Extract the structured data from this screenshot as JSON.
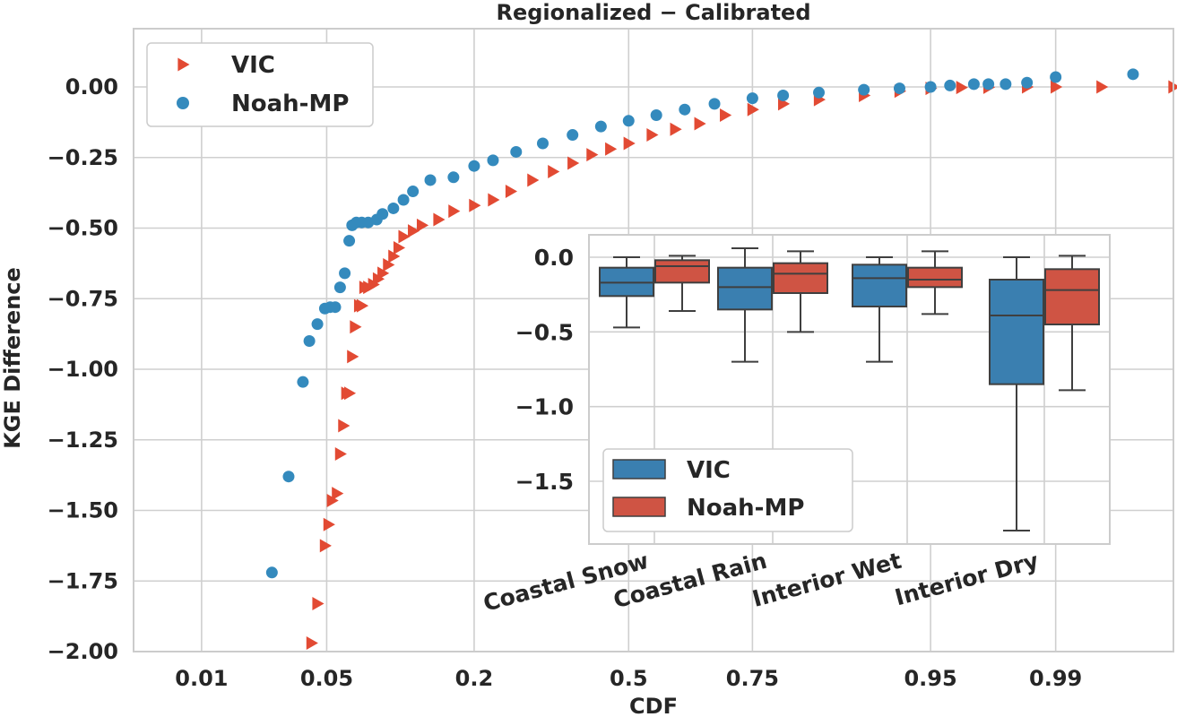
{
  "chart_data": [
    {
      "type": "scatter",
      "title": "Regionalized − Calibrated",
      "xlabel": "CDF",
      "ylabel": "KGE Difference",
      "x_scale": "normal-probability",
      "x_ticks": [
        0.01,
        0.05,
        0.2,
        0.5,
        0.75,
        0.95,
        0.99
      ],
      "x_tick_labels": [
        "0.01",
        "0.05",
        "0.2",
        "0.5",
        "0.75",
        "0.95",
        "0.99"
      ],
      "y_ticks": [
        0.0,
        -0.25,
        -0.5,
        -0.75,
        -1.0,
        -1.25,
        -1.5,
        -1.75,
        -2.0
      ],
      "y_tick_labels": [
        "0.00",
        "−0.25",
        "−0.50",
        "−0.75",
        "−1.00",
        "−1.25",
        "−1.50",
        "−1.75",
        "−2.00"
      ],
      "ylim": [
        -2.0,
        0.2
      ],
      "grid": true,
      "legend_position": "top-left",
      "colors": {
        "VIC": "#e24a33",
        "Noah-MP": "#348abd"
      },
      "series": [
        {
          "name": "VIC",
          "marker": "triangle-right",
          "points": [
            [
              0.042,
              -1.97
            ],
            [
              0.045,
              -1.83
            ],
            [
              0.049,
              -1.625
            ],
            [
              0.051,
              -1.55
            ],
            [
              0.053,
              -1.465
            ],
            [
              0.056,
              -1.44
            ],
            [
              0.058,
              -1.3
            ],
            [
              0.06,
              -1.2
            ],
            [
              0.062,
              -1.085
            ],
            [
              0.064,
              -1.085
            ],
            [
              0.066,
              -0.955
            ],
            [
              0.068,
              -0.85
            ],
            [
              0.071,
              -0.775
            ],
            [
              0.073,
              -0.775
            ],
            [
              0.075,
              -0.71
            ],
            [
              0.078,
              -0.71
            ],
            [
              0.082,
              -0.7
            ],
            [
              0.086,
              -0.68
            ],
            [
              0.09,
              -0.66
            ],
            [
              0.095,
              -0.63
            ],
            [
              0.1,
              -0.6
            ],
            [
              0.105,
              -0.57
            ],
            [
              0.11,
              -0.53
            ],
            [
              0.12,
              -0.51
            ],
            [
              0.13,
              -0.49
            ],
            [
              0.15,
              -0.47
            ],
            [
              0.17,
              -0.44
            ],
            [
              0.2,
              -0.42
            ],
            [
              0.23,
              -0.4
            ],
            [
              0.26,
              -0.37
            ],
            [
              0.3,
              -0.33
            ],
            [
              0.34,
              -0.3
            ],
            [
              0.38,
              -0.27
            ],
            [
              0.42,
              -0.24
            ],
            [
              0.46,
              -0.22
            ],
            [
              0.5,
              -0.2
            ],
            [
              0.55,
              -0.17
            ],
            [
              0.6,
              -0.15
            ],
            [
              0.65,
              -0.13
            ],
            [
              0.7,
              -0.1
            ],
            [
              0.75,
              -0.08
            ],
            [
              0.8,
              -0.06
            ],
            [
              0.85,
              -0.045
            ],
            [
              0.9,
              -0.03
            ],
            [
              0.93,
              -0.015
            ],
            [
              0.95,
              -0.005
            ],
            [
              0.965,
              -0.002
            ],
            [
              0.975,
              -0.001
            ],
            [
              0.985,
              0.0
            ],
            [
              0.99,
              0.0
            ],
            [
              0.995,
              0.0
            ],
            [
              0.9985,
              0.0
            ]
          ]
        },
        {
          "name": "Noah-MP",
          "marker": "circle",
          "points": [
            [
              0.026,
              -1.72
            ],
            [
              0.032,
              -1.38
            ],
            [
              0.038,
              -1.045
            ],
            [
              0.041,
              -0.9
            ],
            [
              0.045,
              -0.84
            ],
            [
              0.049,
              -0.785
            ],
            [
              0.052,
              -0.78
            ],
            [
              0.055,
              -0.78
            ],
            [
              0.058,
              -0.71
            ],
            [
              0.061,
              -0.66
            ],
            [
              0.064,
              -0.545
            ],
            [
              0.066,
              -0.49
            ],
            [
              0.069,
              -0.48
            ],
            [
              0.073,
              -0.48
            ],
            [
              0.078,
              -0.48
            ],
            [
              0.085,
              -0.47
            ],
            [
              0.09,
              -0.45
            ],
            [
              0.1,
              -0.43
            ],
            [
              0.11,
              -0.4
            ],
            [
              0.12,
              -0.37
            ],
            [
              0.14,
              -0.33
            ],
            [
              0.17,
              -0.32
            ],
            [
              0.2,
              -0.28
            ],
            [
              0.23,
              -0.26
            ],
            [
              0.27,
              -0.23
            ],
            [
              0.32,
              -0.2
            ],
            [
              0.38,
              -0.17
            ],
            [
              0.44,
              -0.14
            ],
            [
              0.5,
              -0.12
            ],
            [
              0.56,
              -0.1
            ],
            [
              0.62,
              -0.08
            ],
            [
              0.68,
              -0.06
            ],
            [
              0.75,
              -0.04
            ],
            [
              0.8,
              -0.03
            ],
            [
              0.85,
              -0.02
            ],
            [
              0.9,
              -0.01
            ],
            [
              0.93,
              -0.005
            ],
            [
              0.95,
              0.0
            ],
            [
              0.96,
              0.005
            ],
            [
              0.97,
              0.01
            ],
            [
              0.975,
              0.01
            ],
            [
              0.98,
              0.01
            ],
            [
              0.985,
              0.015
            ],
            [
              0.99,
              0.035
            ],
            [
              0.997,
              0.045
            ]
          ]
        }
      ]
    },
    {
      "type": "box",
      "categories": [
        "Coastal Snow",
        "Coastal Rain",
        "Interior Wet",
        "Interior Dry"
      ],
      "y_ticks": [
        0.0,
        -0.5,
        -1.0,
        -1.5
      ],
      "y_tick_labels": [
        "0.0",
        "−0.5",
        "−1.0",
        "−1.5"
      ],
      "ylim": [
        -1.88,
        0.15
      ],
      "grid": true,
      "legend_position": "lower-left",
      "series": [
        {
          "name": "VIC",
          "color": "#3a7fb0",
          "boxes": [
            {
              "whisker_low": -0.47,
              "q1": -0.26,
              "median": -0.17,
              "q3": -0.07,
              "whisker_high": 0.0
            },
            {
              "whisker_low": -0.7,
              "q1": -0.35,
              "median": -0.2,
              "q3": -0.07,
              "whisker_high": 0.06
            },
            {
              "whisker_low": -0.7,
              "q1": -0.33,
              "median": -0.14,
              "q3": -0.05,
              "whisker_high": 0.0
            },
            {
              "whisker_low": -1.83,
              "q1": -0.85,
              "median": -0.39,
              "q3": -0.15,
              "whisker_high": 0.0
            }
          ]
        },
        {
          "name": "Noah-MP",
          "color": "#cf5444",
          "boxes": [
            {
              "whisker_low": -0.36,
              "q1": -0.17,
              "median": -0.06,
              "q3": -0.02,
              "whisker_high": 0.01
            },
            {
              "whisker_low": -0.5,
              "q1": -0.24,
              "median": -0.11,
              "q3": -0.04,
              "whisker_high": 0.04
            },
            {
              "whisker_low": -0.38,
              "q1": -0.2,
              "median": -0.15,
              "q3": -0.07,
              "whisker_high": 0.04
            },
            {
              "whisker_low": -0.89,
              "q1": -0.45,
              "median": -0.22,
              "q3": -0.08,
              "whisker_high": 0.01
            }
          ]
        }
      ]
    }
  ]
}
